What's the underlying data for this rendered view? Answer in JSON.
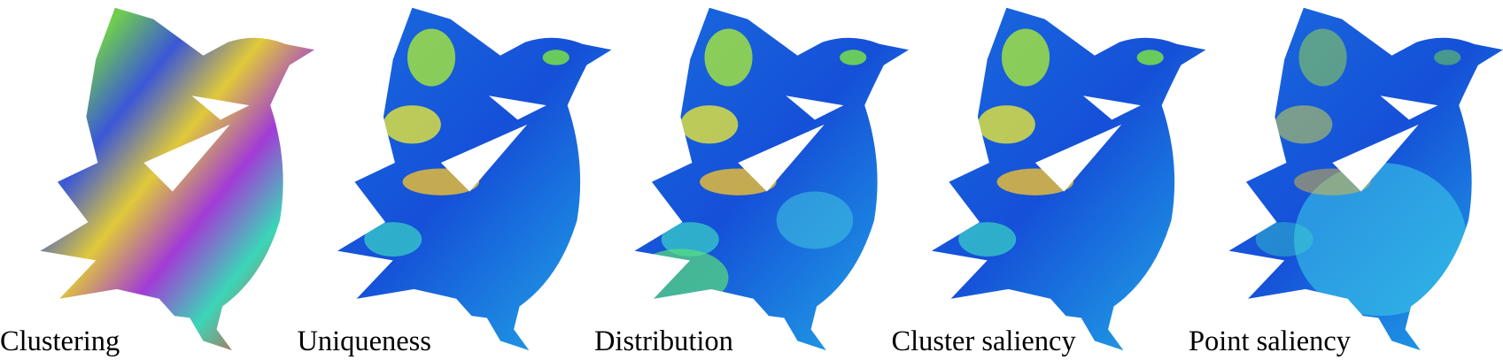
{
  "panels": [
    {
      "label": "Clustering"
    },
    {
      "label": "Uniqueness"
    },
    {
      "label": "Distribution"
    },
    {
      "label": "Cluster saliency"
    },
    {
      "label": "Point saliency"
    }
  ]
}
